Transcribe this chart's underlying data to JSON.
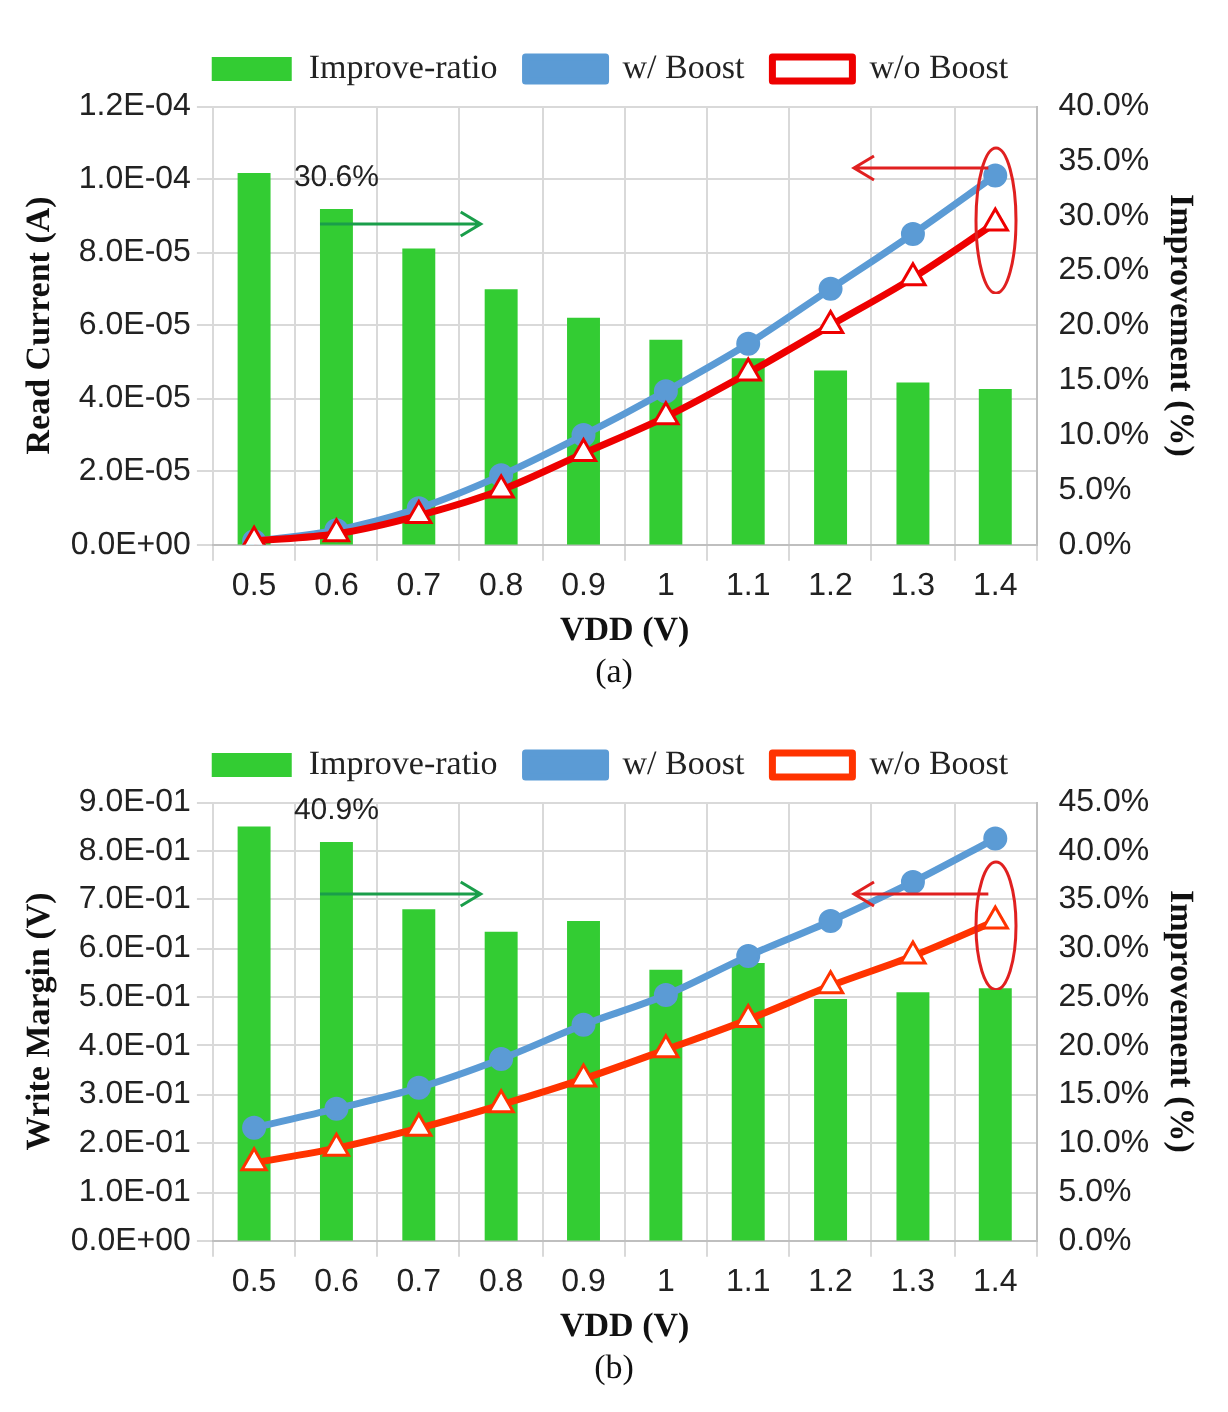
{
  "chart_data": [
    {
      "type": "bar",
      "categories": [
        "0.5",
        "0.6",
        "0.7",
        "0.8",
        "0.9",
        "1",
        "1.1",
        "1.2",
        "1.3",
        "1.4"
      ],
      "xlabel": "VDD (V)",
      "ylabel": "Read Current (A)",
      "y2label": "Improvement (%)",
      "series": [
        {
          "name": "Improve-ratio",
          "type": "bar",
          "axis": "y2",
          "color": "#33cc33",
          "values": [
            33.9,
            30.6,
            27.0,
            23.3,
            20.7,
            18.7,
            17.0,
            15.9,
            14.8,
            14.2
          ],
          "value_labels": [
            null,
            "30.6%",
            null,
            null,
            null,
            null,
            null,
            null,
            null,
            null
          ]
        },
        {
          "name": "w/ Boost",
          "type": "line",
          "axis": "y",
          "color": "#5b9bd5",
          "marker": "circle",
          "values": [
            1e-06,
            4e-06,
            1e-05,
            1.9e-05,
            3e-05,
            4.2e-05,
            5.5e-05,
            7e-05,
            8.5e-05,
            0.000101
          ]
        },
        {
          "name": "w/o Boost",
          "type": "line",
          "axis": "y",
          "color": "#ee0000",
          "marker": "triangle",
          "values": [
            1e-06,
            3e-06,
            8e-06,
            1.5e-05,
            2.5e-05,
            3.5e-05,
            4.7e-05,
            6e-05,
            7.3e-05,
            8.8e-05
          ]
        }
      ],
      "ylim": [
        0,
        0.00012
      ],
      "yticks": [
        {
          "value": 0,
          "label": "0.0E+00"
        },
        {
          "value": 2e-05,
          "label": "2.0E-05"
        },
        {
          "value": 4e-05,
          "label": "4.0E-05"
        },
        {
          "value": 6e-05,
          "label": "6.0E-05"
        },
        {
          "value": 8e-05,
          "label": "8.0E-05"
        },
        {
          "value": 0.0001,
          "label": "1.0E-04"
        },
        {
          "value": 0.00012,
          "label": "1.2E-04"
        }
      ],
      "y2lim": [
        0,
        40
      ],
      "y2ticks": [
        {
          "value": 0,
          "label": "0.0%"
        },
        {
          "value": 5,
          "label": "5.0%"
        },
        {
          "value": 10,
          "label": "10.0%"
        },
        {
          "value": 15,
          "label": "15.0%"
        },
        {
          "value": 20,
          "label": "20.0%"
        },
        {
          "value": 25,
          "label": "25.0%"
        },
        {
          "value": 30,
          "label": "30.0%"
        },
        {
          "value": 35,
          "label": "35.0%"
        },
        {
          "value": 40,
          "label": "40.0%"
        }
      ],
      "grid": true,
      "legend": "top",
      "annotations": [
        "(a)"
      ]
    },
    {
      "type": "bar",
      "categories": [
        "0.5",
        "0.6",
        "0.7",
        "0.8",
        "0.9",
        "1",
        "1.1",
        "1.2",
        "1.3",
        "1.4"
      ],
      "xlabel": "VDD (V)",
      "ylabel": "Write Margin (V)",
      "y2label": "Improvement (%)",
      "series": [
        {
          "name": "Improve-ratio",
          "type": "bar",
          "axis": "y2",
          "color": "#33cc33",
          "values": [
            42.5,
            40.9,
            34.0,
            31.7,
            32.8,
            27.8,
            28.5,
            24.8,
            25.5,
            25.9
          ],
          "value_labels": [
            null,
            "40.9%",
            null,
            null,
            null,
            null,
            null,
            null,
            null,
            null
          ]
        },
        {
          "name": "w/ Boost",
          "type": "line",
          "axis": "y",
          "color": "#5b9bd5",
          "marker": "circle",
          "values": [
            0.232,
            0.271,
            0.314,
            0.373,
            0.443,
            0.504,
            0.584,
            0.656,
            0.736,
            0.825
          ]
        },
        {
          "name": "w/o Boost",
          "type": "line",
          "axis": "y",
          "color": "#ff3300",
          "marker": "triangle",
          "values": [
            0.16,
            0.19,
            0.231,
            0.279,
            0.332,
            0.392,
            0.454,
            0.523,
            0.584,
            0.656
          ]
        }
      ],
      "ylim": [
        0,
        0.9
      ],
      "yticks": [
        {
          "value": 0,
          "label": "0.0E+00"
        },
        {
          "value": 0.1,
          "label": "1.0E-01"
        },
        {
          "value": 0.2,
          "label": "2.0E-01"
        },
        {
          "value": 0.3,
          "label": "3.0E-01"
        },
        {
          "value": 0.4,
          "label": "4.0E-01"
        },
        {
          "value": 0.5,
          "label": "5.0E-01"
        },
        {
          "value": 0.6,
          "label": "6.0E-01"
        },
        {
          "value": 0.7,
          "label": "7.0E-01"
        },
        {
          "value": 0.8,
          "label": "8.0E-01"
        },
        {
          "value": 0.9,
          "label": "9.0E-01"
        }
      ],
      "y2lim": [
        0,
        45
      ],
      "y2ticks": [
        {
          "value": 0,
          "label": "0.0%"
        },
        {
          "value": 5,
          "label": "5.0%"
        },
        {
          "value": 10,
          "label": "10.0%"
        },
        {
          "value": 15,
          "label": "15.0%"
        },
        {
          "value": 20,
          "label": "20.0%"
        },
        {
          "value": 25,
          "label": "25.0%"
        },
        {
          "value": 30,
          "label": "30.0%"
        },
        {
          "value": 35,
          "label": "35.0%"
        },
        {
          "value": 40,
          "label": "40.0%"
        },
        {
          "value": 45,
          "label": "45.0%"
        }
      ],
      "grid": true,
      "legend": "top",
      "annotations": [
        "(b)"
      ]
    }
  ]
}
